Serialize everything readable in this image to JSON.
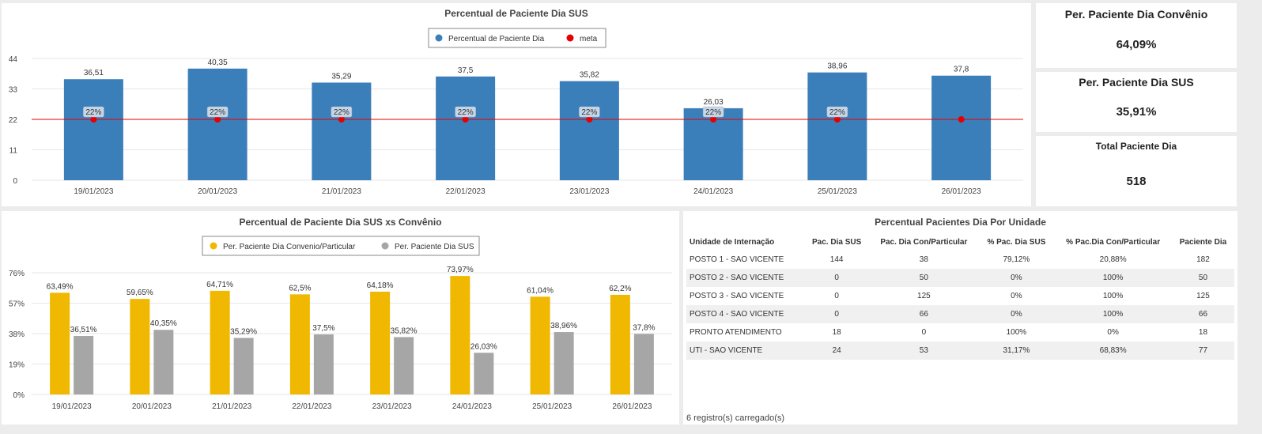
{
  "top_chart": {
    "title": "Percentual de Paciente Dia SUS",
    "legend": [
      {
        "label": "Percentual de Paciente Dia",
        "color": "#3b7fba"
      },
      {
        "label": "meta",
        "color": "#e60000"
      }
    ],
    "y_ticks": [
      "44",
      "33",
      "22",
      "11",
      "0"
    ]
  },
  "bottom_chart": {
    "title": "Percentual de Paciente Dia SUS xs Convênio",
    "legend": [
      {
        "label": "Per. Paciente Dia Convenio/Particular",
        "color": "#f0b800"
      },
      {
        "label": "Per. Paciente Dia SUS",
        "color": "#a6a6a6"
      }
    ],
    "y_ticks": [
      "76%",
      "57%",
      "38%",
      "19%",
      "0%"
    ]
  },
  "chart_data": [
    {
      "type": "bar",
      "title": "Percentual de Paciente Dia SUS",
      "categories": [
        "19/01/2023",
        "20/01/2023",
        "21/01/2023",
        "22/01/2023",
        "23/01/2023",
        "24/01/2023",
        "25/01/2023",
        "26/01/2023"
      ],
      "series": [
        {
          "name": "Percentual de Paciente Dia",
          "values": [
            36.51,
            40.35,
            35.29,
            37.5,
            35.82,
            26.03,
            38.96,
            37.8
          ],
          "labels": [
            "36,51",
            "40,35",
            "35,29",
            "37,5",
            "35,82",
            "26,03",
            "38,96",
            "37,8"
          ]
        },
        {
          "name": "meta",
          "values": [
            22,
            22,
            22,
            22,
            22,
            22,
            22,
            22
          ],
          "labels": [
            "22%",
            "22%",
            "22%",
            "22%",
            "22%",
            "22%",
            "22%",
            ""
          ]
        }
      ],
      "ylim": [
        0,
        44
      ],
      "grid": true,
      "legend_position": "top"
    },
    {
      "type": "bar",
      "title": "Percentual de Paciente Dia SUS xs Convênio",
      "categories": [
        "19/01/2023",
        "20/01/2023",
        "21/01/2023",
        "22/01/2023",
        "23/01/2023",
        "24/01/2023",
        "25/01/2023",
        "26/01/2023"
      ],
      "series": [
        {
          "name": "Per. Paciente Dia Convenio/Particular",
          "values": [
            63.49,
            59.65,
            64.71,
            62.5,
            64.18,
            73.97,
            61.04,
            62.2
          ],
          "labels": [
            "63,49%",
            "59,65%",
            "64,71%",
            "62,5%",
            "64,18%",
            "73,97%",
            "61,04%",
            "62,2%"
          ]
        },
        {
          "name": "Per. Paciente Dia SUS",
          "values": [
            36.51,
            40.35,
            35.29,
            37.5,
            35.82,
            26.03,
            38.96,
            37.8
          ],
          "labels": [
            "36,51%",
            "40,35%",
            "35,29%",
            "37,5%",
            "35,82%",
            "26,03%",
            "38,96%",
            "37,8%"
          ]
        }
      ],
      "ylim": [
        0,
        76
      ],
      "grid": true,
      "legend_position": "top"
    }
  ],
  "kpis": [
    {
      "title": "Per. Paciente Dia Convênio",
      "value": "64,09%"
    },
    {
      "title": "Per. Paciente Dia SUS",
      "value": "35,91%"
    },
    {
      "title": "Total Paciente Dia",
      "value": "518"
    }
  ],
  "table": {
    "title": "Percentual Pacientes Dia Por Unidade",
    "columns": [
      "Unidade de Internação",
      "Pac. Dia SUS",
      "Pac. Dia Con/Particular",
      "% Pac. Dia SUS",
      "% Pac.Dia Con/Particular",
      "Paciente Dia"
    ],
    "rows": [
      [
        "POSTO 1 - SAO VICENTE",
        "144",
        "38",
        "79,12%",
        "20,88%",
        "182"
      ],
      [
        "POSTO 2 - SAO VICENTE",
        "0",
        "50",
        "0%",
        "100%",
        "50"
      ],
      [
        "POSTO 3 - SAO VICENTE",
        "0",
        "125",
        "0%",
        "100%",
        "125"
      ],
      [
        "POSTO 4 - SAO VICENTE",
        "0",
        "66",
        "0%",
        "100%",
        "66"
      ],
      [
        "PRONTO ATENDIMENTO",
        "18",
        "0",
        "100%",
        "0%",
        "18"
      ],
      [
        "UTI - SAO VICENTE",
        "24",
        "53",
        "31,17%",
        "68,83%",
        "77"
      ]
    ],
    "footer": "6 registro(s) carregado(s)"
  }
}
